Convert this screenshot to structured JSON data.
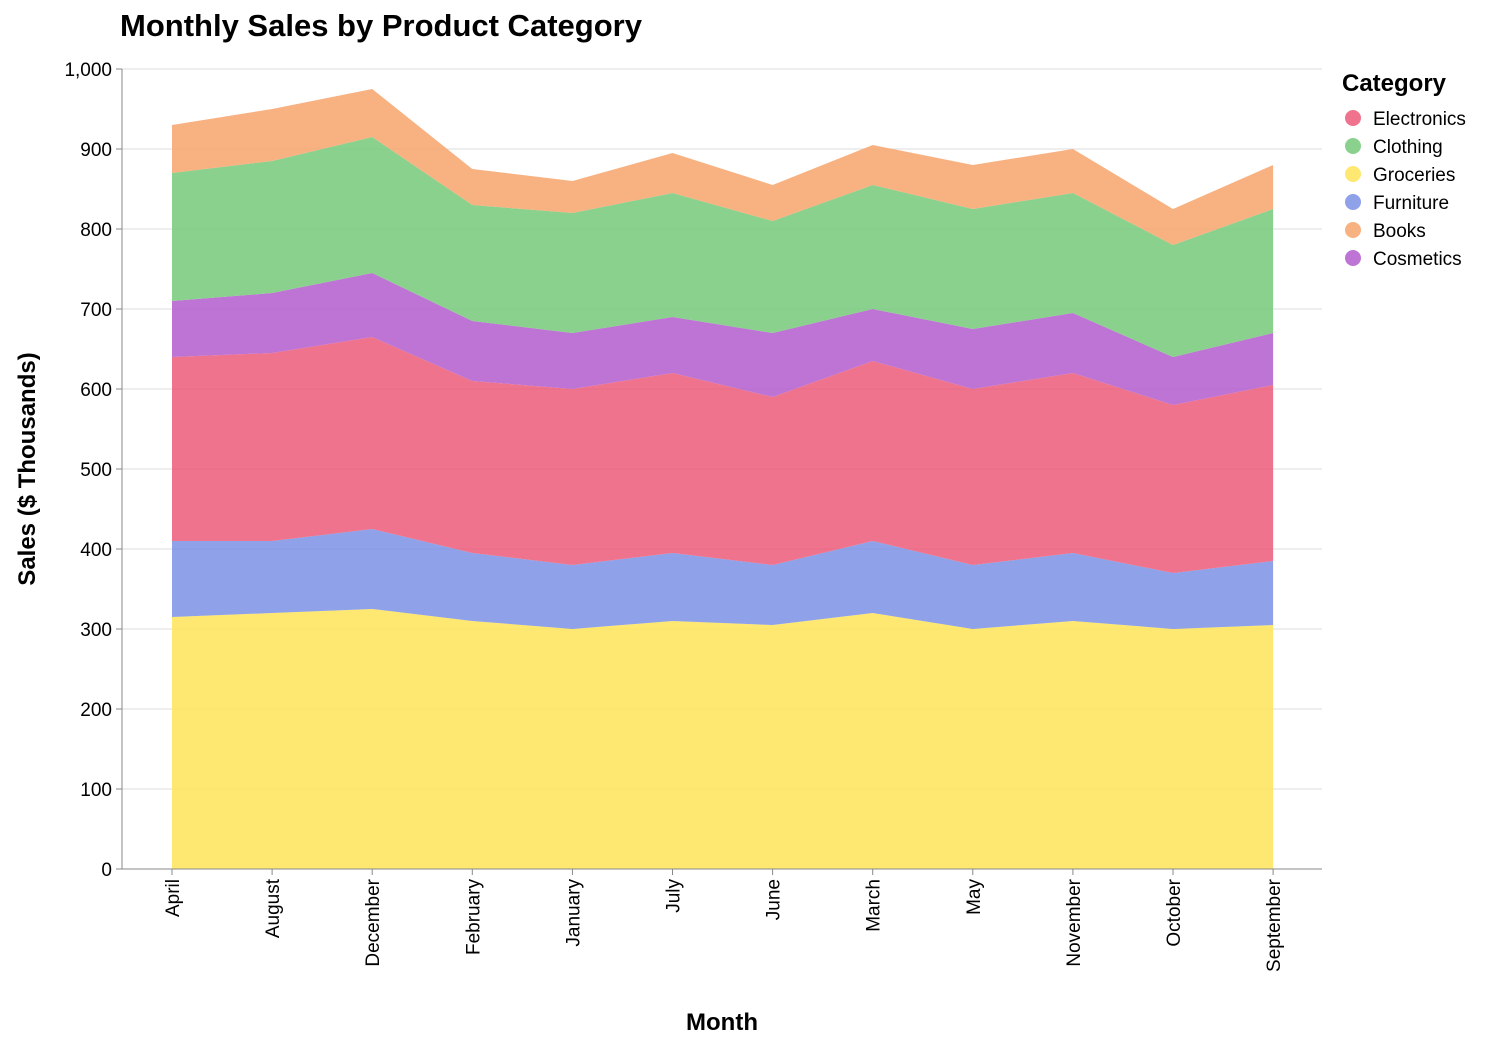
{
  "chart_data": {
    "type": "area",
    "stacked": true,
    "title": "Monthly Sales by Product Category",
    "xlabel": "Month",
    "ylabel": "Sales ($ Thousands)",
    "ylim": [
      0,
      1000
    ],
    "yticks": [
      "0",
      "100",
      "200",
      "300",
      "400",
      "500",
      "600",
      "700",
      "800",
      "900",
      "1,000"
    ],
    "grid": true,
    "legend_title": "Category",
    "legend_position": "right",
    "categories": [
      "April",
      "August",
      "December",
      "February",
      "January",
      "July",
      "June",
      "March",
      "May",
      "November",
      "October",
      "September"
    ],
    "legend_order": [
      "Electronics",
      "Clothing",
      "Groceries",
      "Furniture",
      "Books",
      "Cosmetics"
    ],
    "series": [
      {
        "name": "Groceries",
        "color": "#fee458",
        "values": [
          315,
          320,
          325,
          310,
          300,
          310,
          305,
          320,
          300,
          310,
          300,
          305
        ]
      },
      {
        "name": "Furniture",
        "color": "#7b91e4",
        "values": [
          95,
          90,
          100,
          85,
          80,
          85,
          75,
          90,
          80,
          85,
          70,
          80
        ]
      },
      {
        "name": "Electronics",
        "color": "#ec5a78",
        "values": [
          230,
          235,
          240,
          215,
          220,
          225,
          210,
          225,
          220,
          225,
          210,
          220
        ]
      },
      {
        "name": "Cosmetics",
        "color": "#b35cce",
        "values": [
          70,
          75,
          80,
          75,
          70,
          70,
          80,
          65,
          75,
          75,
          60,
          65
        ]
      },
      {
        "name": "Clothing",
        "color": "#76c97a",
        "values": [
          160,
          165,
          170,
          145,
          150,
          155,
          140,
          155,
          150,
          150,
          140,
          155
        ]
      },
      {
        "name": "Books",
        "color": "#f7a56c",
        "values": [
          60,
          65,
          60,
          45,
          40,
          50,
          45,
          50,
          55,
          55,
          45,
          55
        ]
      }
    ]
  }
}
